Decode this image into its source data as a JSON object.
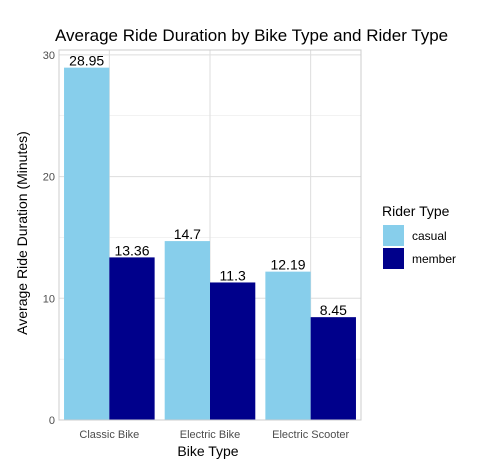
{
  "chart_data": {
    "type": "bar",
    "title": "Average Ride Duration by Bike Type and Rider Type",
    "xlabel": "Bike Type",
    "ylabel": "Average Ride Duration (Minutes)",
    "categories": [
      "Classic Bike",
      "Electric Bike",
      "Electric Scooter"
    ],
    "series": [
      {
        "name": "casual",
        "values": [
          28.95,
          14.7,
          12.19
        ],
        "color": "#87CEEB"
      },
      {
        "name": "member",
        "values": [
          13.36,
          11.3,
          8.45
        ],
        "color": "#00008B"
      }
    ],
    "yticks": [
      0,
      10,
      20,
      30
    ],
    "ylim": [
      0,
      30.4
    ],
    "grid": true,
    "legend": {
      "title": "Rider Type",
      "placement": "right"
    },
    "grid_color": "#dddddd",
    "panel_border_color": "#cccccc"
  }
}
